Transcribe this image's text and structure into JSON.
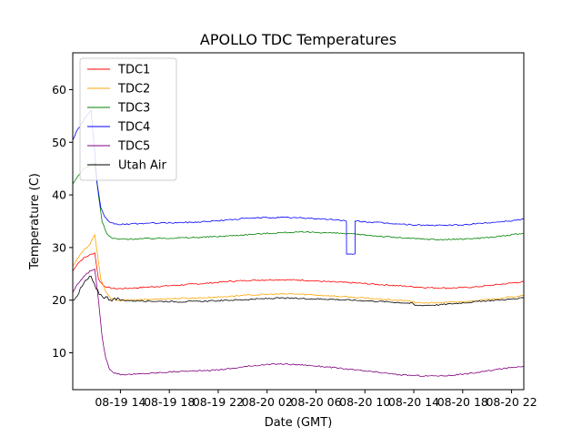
{
  "chart_data": {
    "type": "line",
    "title": "APOLLO TDC Temperatures",
    "xlabel": "Date (GMT)",
    "ylabel": "Temperature (C)",
    "x_unit": "hours since 08-19 00:00 GMT",
    "xlim": [
      10.1,
      47.0
    ],
    "ylim": [
      3,
      67
    ],
    "grid": false,
    "legend_position": "top-left",
    "x_ticks": [
      {
        "value": 14,
        "label": "08-19 14"
      },
      {
        "value": 18,
        "label": "08-19 18"
      },
      {
        "value": 22,
        "label": "08-19 22"
      },
      {
        "value": 26,
        "label": "08-20 02"
      },
      {
        "value": 30,
        "label": "08-20 06"
      },
      {
        "value": 34,
        "label": "08-20 10"
      },
      {
        "value": 38,
        "label": "08-20 14"
      },
      {
        "value": 42,
        "label": "08-20 18"
      },
      {
        "value": 46,
        "label": "08-20 22"
      }
    ],
    "y_ticks": [
      {
        "value": 10,
        "label": "10"
      },
      {
        "value": 20,
        "label": "20"
      },
      {
        "value": 30,
        "label": "30"
      },
      {
        "value": 40,
        "label": "40"
      },
      {
        "value": 50,
        "label": "50"
      },
      {
        "value": 60,
        "label": "60"
      }
    ],
    "series": [
      {
        "name": "TDC1",
        "color": "#ff0000",
        "x": [
          10.1,
          10.5,
          11.0,
          11.5,
          11.9,
          12.2,
          12.6,
          13.0,
          13.5,
          14.0,
          15.0,
          17.0,
          19.0,
          21.0,
          23.0,
          25.0,
          27.0,
          29.0,
          31.0,
          33.0,
          35.0,
          37.0,
          39.0,
          41.0,
          43.0,
          45.0,
          47.0
        ],
        "y": [
          25.5,
          27.0,
          28.0,
          28.6,
          29.0,
          24.0,
          22.8,
          22.4,
          22.2,
          22.2,
          22.3,
          22.6,
          22.9,
          23.2,
          23.6,
          23.8,
          23.9,
          23.8,
          23.5,
          23.3,
          23.0,
          22.7,
          22.4,
          22.3,
          22.5,
          23.0,
          23.5
        ]
      },
      {
        "name": "TDC2",
        "color": "#ffa500",
        "x": [
          10.1,
          10.5,
          11.0,
          11.5,
          11.9,
          12.1,
          12.4,
          12.8,
          13.2,
          13.8,
          14.5,
          16.0,
          18.0,
          20.0,
          22.0,
          24.0,
          26.0,
          28.0,
          30.0,
          32.0,
          34.0,
          36.0,
          37.9,
          38.1,
          40.0,
          42.0,
          44.0,
          46.0,
          47.0
        ],
        "y": [
          26.5,
          28.0,
          29.5,
          30.5,
          32.5,
          29.0,
          24.0,
          21.5,
          20.4,
          20.0,
          20.0,
          20.1,
          20.3,
          20.4,
          20.6,
          20.9,
          21.1,
          21.2,
          21.0,
          20.7,
          20.4,
          20.1,
          19.8,
          19.5,
          19.5,
          19.7,
          20.1,
          20.6,
          20.9
        ]
      },
      {
        "name": "TDC3",
        "color": "#008000",
        "x": [
          10.1,
          10.5,
          11.0,
          11.5,
          11.9,
          12.2,
          12.5,
          12.9,
          13.3,
          13.8,
          14.5,
          16.0,
          18.0,
          20.0,
          22.0,
          24.0,
          26.0,
          28.0,
          30.0,
          32.0,
          34.0,
          36.0,
          38.0,
          40.0,
          42.0,
          44.0,
          46.0,
          47.0
        ],
        "y": [
          42.0,
          43.5,
          45.0,
          45.5,
          46.0,
          40.0,
          35.0,
          32.5,
          31.8,
          31.6,
          31.6,
          31.7,
          31.8,
          31.9,
          32.1,
          32.4,
          32.7,
          32.9,
          32.9,
          32.7,
          32.4,
          32.0,
          31.7,
          31.5,
          31.6,
          31.9,
          32.4,
          32.7
        ]
      },
      {
        "name": "TDC4",
        "color": "#0000ff",
        "x": [
          10.1,
          10.4,
          10.8,
          11.2,
          11.6,
          11.9,
          12.1,
          12.4,
          12.7,
          13.0,
          13.4,
          13.8,
          14.3,
          15.0,
          16.0,
          18.0,
          20.0,
          22.0,
          24.0,
          26.0,
          28.0,
          30.0,
          32.0,
          32.49,
          32.5,
          33.19,
          33.2,
          34.0,
          36.0,
          38.0,
          40.0,
          42.0,
          44.0,
          46.0,
          47.0
        ],
        "y": [
          50.5,
          52.0,
          53.5,
          55.0,
          56.0,
          48.0,
          42.0,
          37.5,
          35.8,
          35.0,
          34.6,
          34.4,
          34.4,
          34.5,
          34.6,
          34.7,
          34.8,
          35.1,
          35.5,
          35.7,
          35.7,
          35.5,
          35.2,
          35.1,
          28.7,
          28.7,
          35.1,
          34.9,
          34.6,
          34.3,
          34.2,
          34.3,
          34.7,
          35.1,
          35.4
        ]
      },
      {
        "name": "TDC5",
        "color": "#800080",
        "x": [
          10.1,
          10.5,
          11.0,
          11.5,
          11.9,
          12.2,
          12.5,
          12.8,
          13.1,
          13.5,
          14.0,
          15.0,
          17.0,
          19.0,
          21.0,
          23.0,
          25.0,
          27.0,
          29.0,
          31.0,
          33.0,
          35.0,
          37.0,
          39.0,
          41.0,
          43.0,
          45.0,
          47.0
        ],
        "y": [
          21.5,
          23.0,
          24.5,
          25.5,
          26.0,
          20.0,
          13.0,
          9.0,
          7.0,
          6.2,
          5.9,
          5.9,
          6.2,
          6.5,
          6.6,
          7.0,
          7.6,
          7.9,
          7.7,
          7.3,
          6.8,
          6.3,
          5.8,
          5.6,
          5.7,
          6.2,
          6.9,
          7.5
        ]
      },
      {
        "name": "Utah Air",
        "color": "#000000",
        "x": [
          10.1,
          10.6,
          11.1,
          11.6,
          12.0,
          12.4,
          12.8,
          13.3,
          14.0,
          15.0,
          17.0,
          19.0,
          21.0,
          23.0,
          25.0,
          27.0,
          29.0,
          31.0,
          33.0,
          35.0,
          37.9,
          38.1,
          40.0,
          42.0,
          44.0,
          46.0,
          47.0
        ],
        "y": [
          20.0,
          21.5,
          23.5,
          24.5,
          22.0,
          21.0,
          20.5,
          20.2,
          20.0,
          19.9,
          19.8,
          19.7,
          19.8,
          20.0,
          20.2,
          20.4,
          20.3,
          20.2,
          20.0,
          19.8,
          19.4,
          19.0,
          19.1,
          19.5,
          19.9,
          20.2,
          20.4
        ]
      }
    ]
  }
}
